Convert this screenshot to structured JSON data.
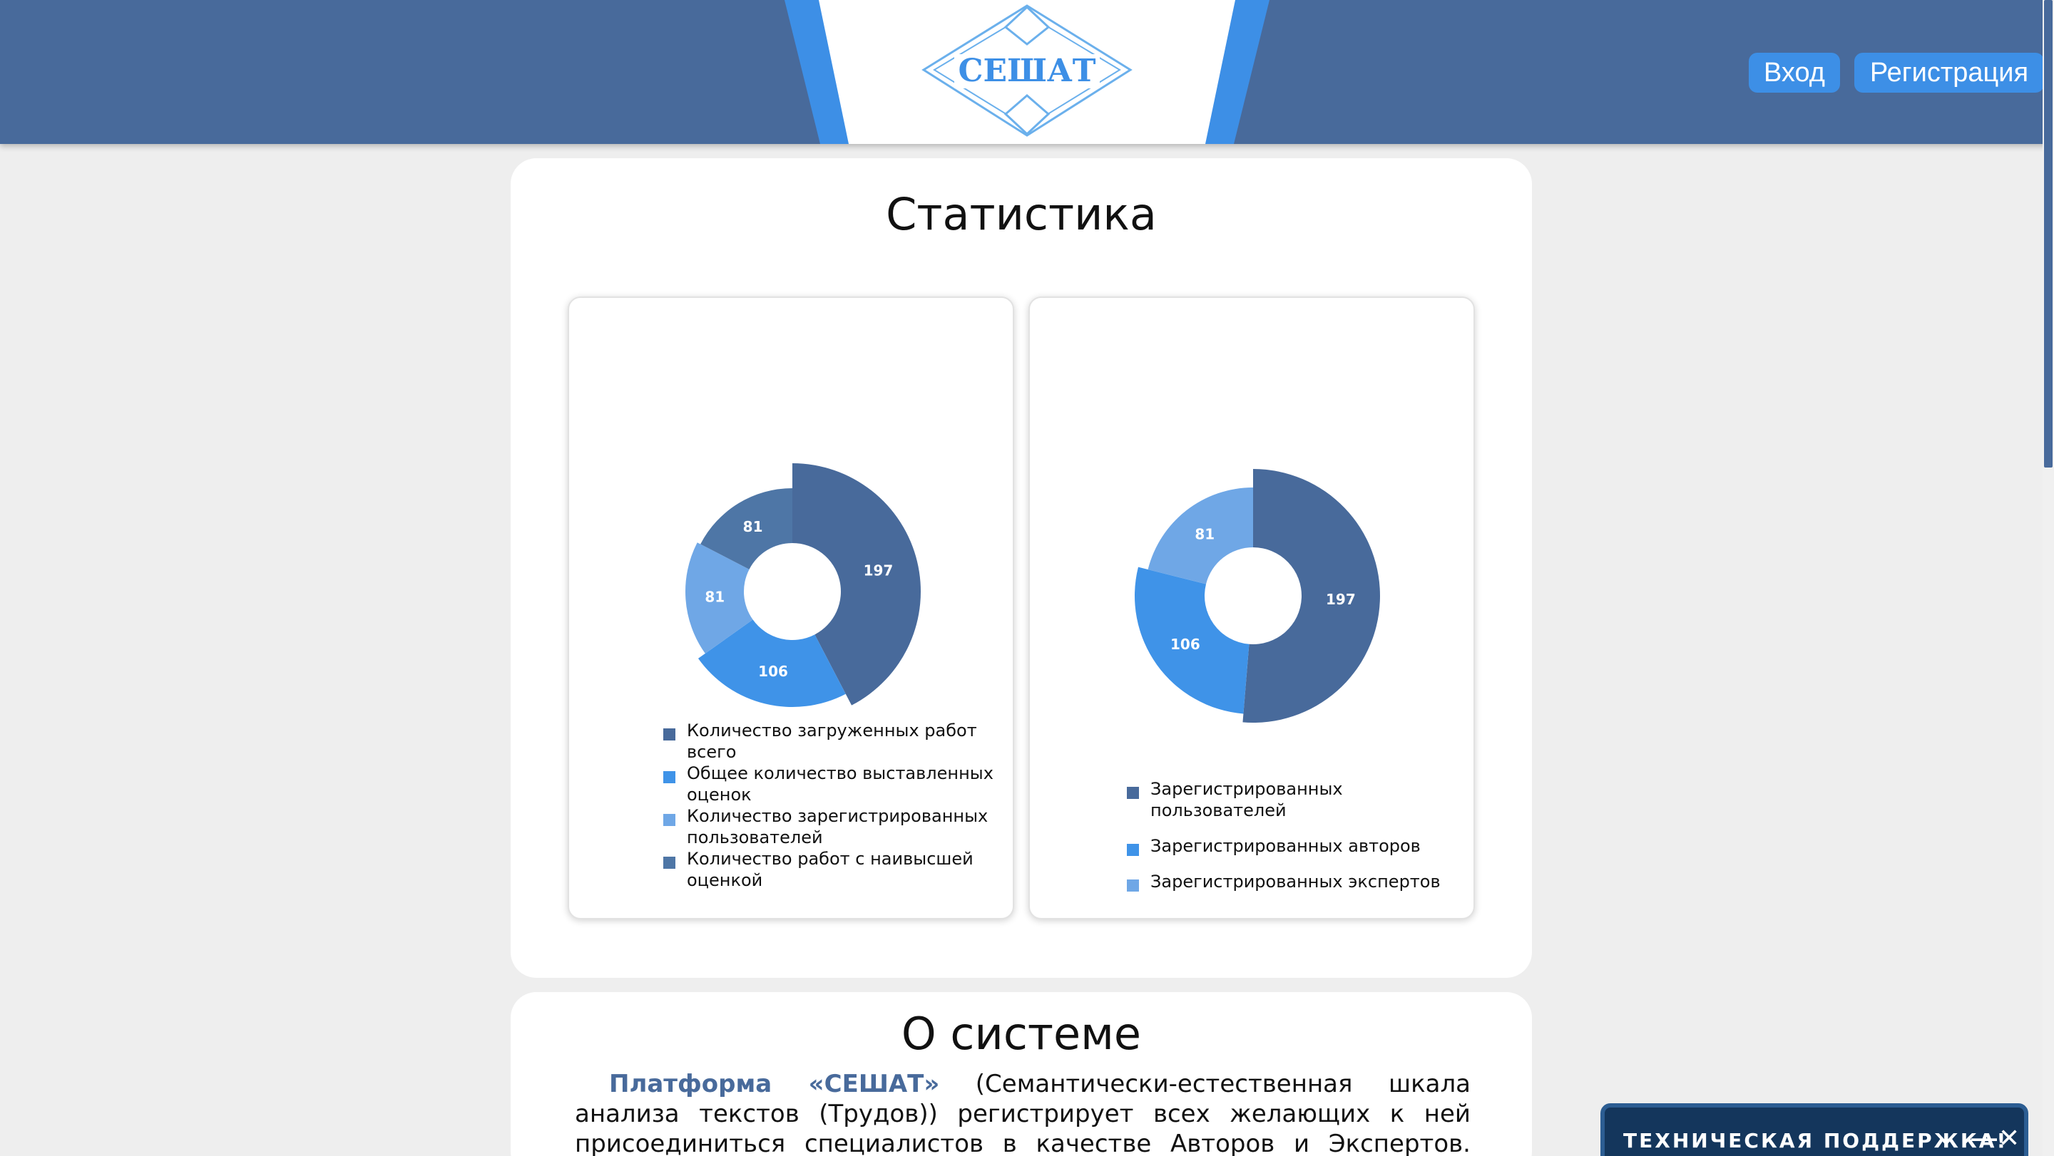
{
  "header": {
    "logo_text": "СЕШАТ",
    "login_label": "Вход",
    "register_label": "Регистрация"
  },
  "stats": {
    "title": "Статистика"
  },
  "chart_data": [
    {
      "type": "pie",
      "variant": "nightingale-donut",
      "title": "",
      "categories": [
        "Количество загруженных работ всего",
        "Общее количество выставленных оценок",
        "Количество зарегистрированных пользователей",
        "Количество работ с наивысшей оценкой"
      ],
      "values": [
        197,
        106,
        81,
        81
      ],
      "colors": [
        "#486a9b",
        "#3f93e8",
        "#6fa7e6",
        "#4e76a6"
      ],
      "legend": "bottom"
    },
    {
      "type": "pie",
      "variant": "nightingale-donut",
      "title": "",
      "categories": [
        "Зарегистрированных пользователей",
        "Зарегистрированных авторов",
        "Зарегистрированных экспертов"
      ],
      "values": [
        197,
        106,
        81
      ],
      "colors": [
        "#486a9b",
        "#3f93e8",
        "#6fa7e6"
      ],
      "legend": "bottom"
    }
  ],
  "about": {
    "title": "О системе",
    "brand": "Платформа «СЕШАТ»",
    "text": " (Семантически-естественная шкала анализа текстов (Трудов)) регистрирует всех желающих к ней присоединиться специалистов в качестве Авторов и Экспертов. Любой желающий может"
  },
  "support": {
    "label": "ТЕХНИЧЕСКАЯ ПОДДЕРЖКА!",
    "minimize": "—",
    "close": "✕"
  },
  "colors": {
    "header": "#486a9b",
    "accent": "#3d8fe6",
    "support_bg": "#14365c"
  }
}
